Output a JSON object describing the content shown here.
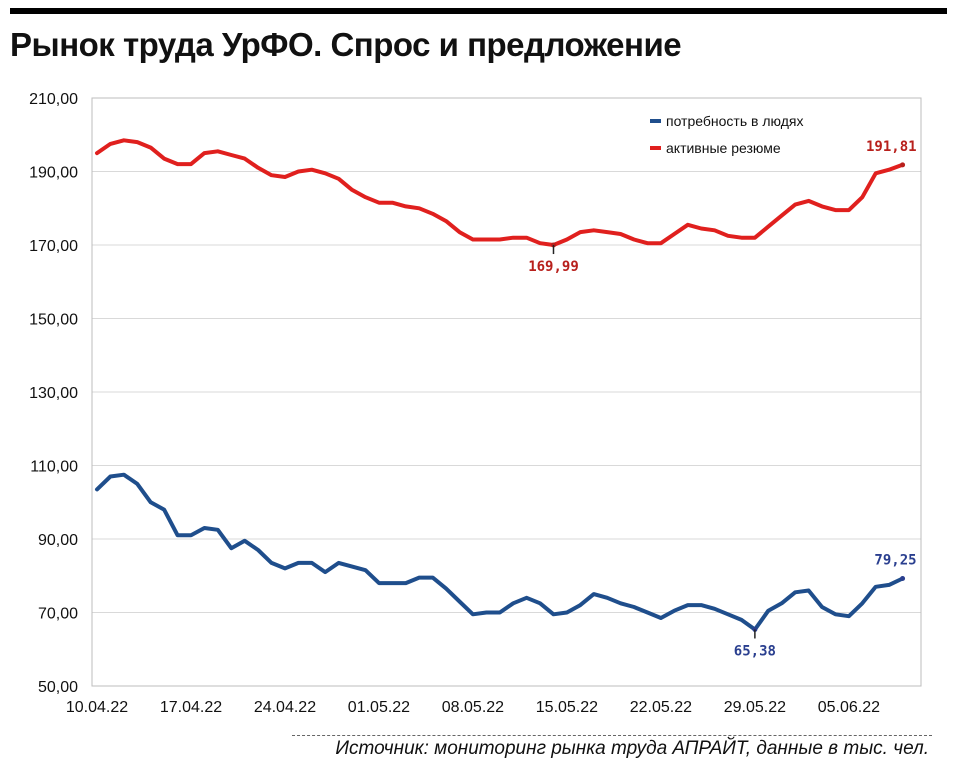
{
  "title": "Рынок труда УрФО. Спрос и предложение",
  "source": "Источник: мониторинг рынка труда АПРАЙТ, данные в тыс. чел.",
  "colors": {
    "demand": "#1f4e8c",
    "resumes": "#e0201e",
    "demand_label": "#2a3f8f",
    "resumes_label": "#b8201c",
    "grid": "#d9d9d9"
  },
  "chart_data": {
    "type": "line",
    "ylim": [
      50,
      210
    ],
    "y_ticks": [
      "210,00",
      "190,00",
      "170,00",
      "150,00",
      "130,00",
      "110,00",
      "90,00",
      "70,00",
      "50,00"
    ],
    "y_tick_values": [
      210,
      190,
      170,
      150,
      130,
      110,
      90,
      70,
      50
    ],
    "x_ticks": [
      "10.04.22",
      "17.04.22",
      "24.04.22",
      "01.05.22",
      "08.05.22",
      "15.05.22",
      "22.05.22",
      "29.05.22",
      "05.06.22"
    ],
    "x_tick_days": [
      0,
      7,
      14,
      21,
      28,
      35,
      42,
      49,
      56
    ],
    "x_range_days": [
      0,
      61
    ],
    "grid": true,
    "legend_position": "top-right",
    "series": [
      {
        "name": "потребность в людях",
        "color": "#1f4e8c",
        "values": [
          103.5,
          107.0,
          107.5,
          105.0,
          100.0,
          98.0,
          91.0,
          91.0,
          93.0,
          92.5,
          87.5,
          89.5,
          87.0,
          83.5,
          82.0,
          83.5,
          83.5,
          81.0,
          83.5,
          82.5,
          81.5,
          78.0,
          78.0,
          78.0,
          79.5,
          79.5,
          76.5,
          73.0,
          69.5,
          70.0,
          70.0,
          72.5,
          74.0,
          72.5,
          69.5,
          70.0,
          72.0,
          75.0,
          74.0,
          72.5,
          71.5,
          70.0,
          68.5,
          70.5,
          72.0,
          72.0,
          71.0,
          69.5,
          68.0,
          65.38,
          70.5,
          72.5,
          75.5,
          76.0,
          71.5,
          69.5,
          69.0,
          72.5,
          77.0,
          77.5,
          79.25
        ]
      },
      {
        "name": "активные резюме",
        "color": "#e0201e",
        "values": [
          195.0,
          197.5,
          198.5,
          198.0,
          196.5,
          193.5,
          192.0,
          192.0,
          195.0,
          195.5,
          194.5,
          193.5,
          191.0,
          189.0,
          188.5,
          190.0,
          190.5,
          189.5,
          188.0,
          185.0,
          183.0,
          181.5,
          181.5,
          180.5,
          180.0,
          178.5,
          176.5,
          173.5,
          171.5,
          171.5,
          171.5,
          172.0,
          172.0,
          170.5,
          169.99,
          171.5,
          173.5,
          174.0,
          173.5,
          173.0,
          171.5,
          170.5,
          170.5,
          173.0,
          175.5,
          174.5,
          174.0,
          172.5,
          172.0,
          172.0,
          175.0,
          178.0,
          181.0,
          182.0,
          180.5,
          179.5,
          179.5,
          183.0,
          189.5,
          190.5,
          191.81
        ]
      }
    ],
    "annotations": [
      {
        "series": 1,
        "index": 34,
        "text": "169,99",
        "position": "below"
      },
      {
        "series": 1,
        "index": 60,
        "text": "191,81",
        "position": "above"
      },
      {
        "series": 0,
        "index": 49,
        "text": "65,38",
        "position": "below"
      },
      {
        "series": 0,
        "index": 60,
        "text": "79,25",
        "position": "above"
      }
    ]
  }
}
